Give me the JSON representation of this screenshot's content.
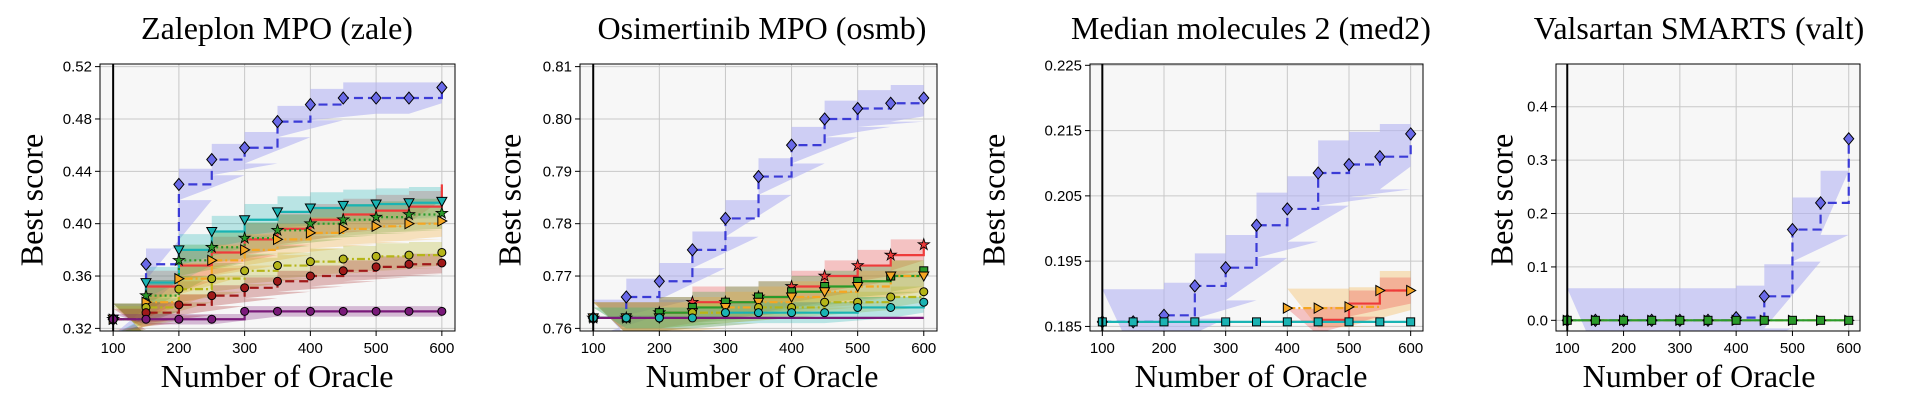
{
  "colors": {
    "plot_bg": "#f7f7f7",
    "grid": "#c8c8c8",
    "vline": "#000000",
    "main_line": "#3b3bd6",
    "main_band": "#b3b3f2",
    "main_marker": "#6a6ae8",
    "red": "#ee3b3b",
    "teal": "#1ab3b3",
    "green": "#2a9a2a",
    "olive": "#b5b519",
    "darkred": "#a01919",
    "orange": "#f5a623",
    "purple": "#7a1a7a",
    "flat": "#5aa0c8"
  },
  "chart_data": [
    {
      "type": "line",
      "title": "Zaleplon MPO (zale)",
      "xlabel": "Number of Oracle",
      "ylabel": "Best score",
      "xlim": [
        80,
        620
      ],
      "ylim": [
        0.318,
        0.522
      ],
      "xticks": [
        100,
        200,
        300,
        400,
        500,
        600
      ],
      "xtick_labels": [
        "100",
        "200",
        "300",
        "400",
        "500",
        "600"
      ],
      "yticks": [
        0.32,
        0.36,
        0.4,
        0.44,
        0.48,
        0.52
      ],
      "ytick_labels": [
        "0.32",
        "0.36",
        "0.40",
        "0.44",
        "0.48",
        "0.52"
      ],
      "vline_x": 100,
      "grid": true,
      "series": [
        {
          "name": "main",
          "color": "#3b3bd6",
          "style": "dashed",
          "marker": "D",
          "band": 0.012,
          "x": [
            100,
            150,
            200,
            250,
            300,
            350,
            400,
            450,
            500,
            550,
            600
          ],
          "y": [
            0.327,
            0.369,
            0.43,
            0.449,
            0.458,
            0.478,
            0.491,
            0.496,
            0.496,
            0.496,
            0.504
          ]
        },
        {
          "name": "red",
          "color": "#ee3b3b",
          "style": "solid",
          "marker": "none",
          "band": 0.012,
          "x": [
            100,
            150,
            200,
            250,
            300,
            350,
            400,
            450,
            500,
            550,
            600
          ],
          "y": [
            0.327,
            0.352,
            0.368,
            0.378,
            0.388,
            0.396,
            0.403,
            0.407,
            0.41,
            0.413,
            0.43
          ]
        },
        {
          "name": "teal",
          "color": "#1ab3b3",
          "style": "solid",
          "marker": "v",
          "band": 0.012,
          "x": [
            100,
            150,
            200,
            250,
            300,
            350,
            400,
            450,
            500,
            550,
            600
          ],
          "y": [
            0.327,
            0.355,
            0.38,
            0.394,
            0.403,
            0.409,
            0.412,
            0.414,
            0.415,
            0.416,
            0.417
          ]
        },
        {
          "name": "green",
          "color": "#2a9a2a",
          "style": "dotted",
          "marker": "*",
          "band": 0.012,
          "x": [
            100,
            150,
            200,
            250,
            300,
            350,
            400,
            450,
            500,
            550,
            600
          ],
          "y": [
            0.327,
            0.345,
            0.372,
            0.382,
            0.389,
            0.395,
            0.4,
            0.403,
            0.405,
            0.407,
            0.408
          ]
        },
        {
          "name": "orange",
          "color": "#f5a623",
          "style": "dashdot",
          "marker": ">",
          "band": 0.012,
          "x": [
            100,
            150,
            200,
            250,
            300,
            350,
            400,
            450,
            500,
            550,
            600
          ],
          "y": [
            0.327,
            0.34,
            0.358,
            0.372,
            0.38,
            0.388,
            0.393,
            0.396,
            0.398,
            0.4,
            0.402
          ]
        },
        {
          "name": "olive",
          "color": "#b5b519",
          "style": "dashdot",
          "marker": "o",
          "band": 0.01,
          "x": [
            100,
            150,
            200,
            250,
            300,
            350,
            400,
            450,
            500,
            550,
            600
          ],
          "y": [
            0.327,
            0.336,
            0.35,
            0.358,
            0.364,
            0.368,
            0.371,
            0.373,
            0.375,
            0.376,
            0.378
          ]
        },
        {
          "name": "darkred",
          "color": "#a01919",
          "style": "dashed",
          "marker": "o",
          "band": 0.008,
          "x": [
            100,
            150,
            200,
            250,
            300,
            350,
            400,
            450,
            500,
            550,
            600
          ],
          "y": [
            0.327,
            0.332,
            0.338,
            0.345,
            0.351,
            0.356,
            0.36,
            0.364,
            0.367,
            0.369,
            0.37
          ]
        },
        {
          "name": "purple",
          "color": "#7a1a7a",
          "style": "solid",
          "marker": "o",
          "band": 0.004,
          "x": [
            100,
            150,
            200,
            250,
            300,
            350,
            400,
            450,
            500,
            550,
            600
          ],
          "y": [
            0.327,
            0.327,
            0.327,
            0.327,
            0.333,
            0.333,
            0.333,
            0.333,
            0.333,
            0.333,
            0.333
          ]
        }
      ]
    },
    {
      "type": "line",
      "title": "Osimertinib MPO (osmb)",
      "xlabel": "Number of Oracle",
      "ylabel": "Best score",
      "xlim": [
        80,
        620
      ],
      "ylim": [
        0.7595,
        0.8105
      ],
      "xticks": [
        100,
        200,
        300,
        400,
        500,
        600
      ],
      "xtick_labels": [
        "100",
        "200",
        "300",
        "400",
        "500",
        "600"
      ],
      "yticks": [
        0.76,
        0.77,
        0.78,
        0.79,
        0.8,
        0.81
      ],
      "ytick_labels": [
        "0.76",
        "0.77",
        "0.78",
        "0.79",
        "0.80",
        "0.81"
      ],
      "vline_x": 100,
      "grid": true,
      "series": [
        {
          "name": "main",
          "color": "#3b3bd6",
          "style": "dashed",
          "marker": "D",
          "band": 0.0035,
          "x": [
            100,
            150,
            200,
            250,
            300,
            350,
            400,
            450,
            500,
            550,
            600
          ],
          "y": [
            0.762,
            0.766,
            0.769,
            0.775,
            0.781,
            0.789,
            0.795,
            0.8,
            0.802,
            0.803,
            0.804
          ]
        },
        {
          "name": "red",
          "color": "#ee3b3b",
          "style": "solid",
          "marker": "*",
          "band": 0.003,
          "x": [
            100,
            150,
            200,
            250,
            300,
            350,
            400,
            450,
            500,
            550,
            600
          ],
          "y": [
            0.762,
            0.762,
            0.763,
            0.765,
            0.765,
            0.766,
            0.768,
            0.77,
            0.772,
            0.774,
            0.776
          ]
        },
        {
          "name": "green",
          "color": "#2a9a2a",
          "style": "solid",
          "marker": "s",
          "band": 0.003,
          "x": [
            100,
            150,
            200,
            250,
            300,
            350,
            400,
            450,
            500,
            550,
            600
          ],
          "y": [
            0.762,
            0.762,
            0.763,
            0.764,
            0.765,
            0.766,
            0.767,
            0.768,
            0.769,
            0.77,
            0.771
          ]
        },
        {
          "name": "orange",
          "color": "#f5a623",
          "style": "dashdot",
          "marker": "v",
          "band": 0.003,
          "x": [
            100,
            150,
            200,
            250,
            300,
            350,
            400,
            450,
            500,
            550,
            600
          ],
          "y": [
            0.762,
            0.762,
            0.762,
            0.763,
            0.764,
            0.765,
            0.766,
            0.767,
            0.768,
            0.77,
            0.77
          ]
        },
        {
          "name": "olive",
          "color": "#b5b519",
          "style": "dashdot",
          "marker": "o",
          "band": 0.002,
          "x": [
            100,
            150,
            200,
            250,
            300,
            350,
            400,
            450,
            500,
            550,
            600
          ],
          "y": [
            0.762,
            0.762,
            0.762,
            0.763,
            0.763,
            0.764,
            0.764,
            0.765,
            0.765,
            0.766,
            0.767
          ]
        },
        {
          "name": "teal",
          "color": "#1ab3b3",
          "style": "solid",
          "marker": "o",
          "band": 0.002,
          "x": [
            100,
            150,
            200,
            250,
            300,
            350,
            400,
            450,
            500,
            550,
            600
          ],
          "y": [
            0.762,
            0.762,
            0.762,
            0.762,
            0.763,
            0.763,
            0.763,
            0.763,
            0.764,
            0.764,
            0.765
          ]
        },
        {
          "name": "purple",
          "color": "#7a1a7a",
          "style": "solid",
          "marker": "none",
          "band": 0.0,
          "x": [
            100,
            150,
            200,
            250,
            300,
            350,
            400,
            450,
            500,
            550,
            600
          ],
          "y": [
            0.762,
            0.762,
            0.762,
            0.762,
            0.762,
            0.762,
            0.762,
            0.762,
            0.762,
            0.762,
            0.762
          ]
        }
      ]
    },
    {
      "type": "line",
      "title": "Median molecules 2 (med2)",
      "xlabel": "Number of Oracle",
      "ylabel": "Best score",
      "xlim": [
        80,
        620
      ],
      "ylim": [
        0.1843,
        0.2252
      ],
      "xticks": [
        100,
        200,
        300,
        400,
        500,
        600
      ],
      "xtick_labels": [
        "100",
        "200",
        "300",
        "400",
        "500",
        "600"
      ],
      "yticks": [
        0.185,
        0.195,
        0.205,
        0.215,
        0.225
      ],
      "ytick_labels": [
        "0.185",
        "0.195",
        "0.205",
        "0.215",
        "0.225"
      ],
      "vline_x": 100,
      "grid": true,
      "series": [
        {
          "name": "main",
          "color": "#3b3bd6",
          "style": "dashed",
          "marker": "D",
          "band": 0.005,
          "x": [
            100,
            150,
            200,
            250,
            300,
            350,
            400,
            450,
            500,
            550,
            600
          ],
          "y": [
            0.1857,
            0.1857,
            0.1867,
            0.1912,
            0.194,
            0.2005,
            0.203,
            0.2085,
            0.2098,
            0.211,
            0.2145
          ]
        },
        {
          "name": "orange",
          "color": "#f5a623",
          "style": "dashdot",
          "marker": ">",
          "band": 0.003,
          "x": [
            400,
            450,
            500,
            550,
            600
          ],
          "y": [
            0.1878,
            0.1878,
            0.188,
            0.1905,
            0.1905
          ]
        },
        {
          "name": "red",
          "color": "#ee3b3b",
          "style": "solid",
          "marker": "none",
          "band": 0.002,
          "x": [
            400,
            450,
            500,
            550,
            600
          ],
          "y": [
            0.1857,
            0.186,
            0.1885,
            0.1905,
            0.1905
          ]
        },
        {
          "name": "teal",
          "color": "#1ab3b3",
          "style": "solid",
          "marker": "s",
          "band": 0.0,
          "x": [
            100,
            150,
            200,
            250,
            300,
            350,
            400,
            450,
            500,
            550,
            600
          ],
          "y": [
            0.1857,
            0.1857,
            0.1857,
            0.1857,
            0.1857,
            0.1857,
            0.1857,
            0.1857,
            0.1857,
            0.1857,
            0.1857
          ]
        }
      ]
    },
    {
      "type": "line",
      "title": "Valsartan SMARTS (valt)",
      "xlabel": "Number of Oracle",
      "ylabel": "Best score",
      "xlim": [
        80,
        620
      ],
      "ylim": [
        -0.02,
        0.48
      ],
      "xticks": [
        100,
        200,
        300,
        400,
        500,
        600
      ],
      "xtick_labels": [
        "100",
        "200",
        "300",
        "400",
        "500",
        "600"
      ],
      "yticks": [
        0.0,
        0.1,
        0.2,
        0.3,
        0.4
      ],
      "ytick_labels": [
        "0.0",
        "0.1",
        "0.2",
        "0.3",
        "0.4"
      ],
      "vline_x": 100,
      "grid": true,
      "series": [
        {
          "name": "main",
          "color": "#3b3bd6",
          "style": "dashed",
          "marker": "D",
          "band": 0.06,
          "x": [
            100,
            150,
            200,
            250,
            300,
            350,
            400,
            450,
            500,
            550,
            600
          ],
          "y": [
            0.0,
            0.0,
            0.0,
            0.0,
            0.0,
            0.0,
            0.005,
            0.045,
            0.17,
            0.22,
            0.34
          ]
        },
        {
          "name": "orange",
          "color": "#f5a623",
          "style": "dashdot",
          "marker": ">",
          "band": 0.0,
          "x": [
            100,
            150,
            200,
            250,
            300,
            350,
            400,
            450,
            500,
            550,
            600
          ],
          "y": [
            0.0,
            0.0,
            0.0,
            0.0,
            0.0,
            0.0,
            0.0,
            0.0,
            0.0,
            0.0,
            0.0
          ]
        },
        {
          "name": "green",
          "color": "#2a9a2a",
          "style": "solid",
          "marker": "s",
          "band": 0.0,
          "x": [
            100,
            150,
            200,
            250,
            300,
            350,
            400,
            450,
            500,
            550,
            600
          ],
          "y": [
            0.0,
            0.0,
            0.0,
            0.0,
            0.0,
            0.0,
            0.0,
            0.0,
            0.0,
            0.0,
            0.0
          ]
        }
      ]
    }
  ]
}
